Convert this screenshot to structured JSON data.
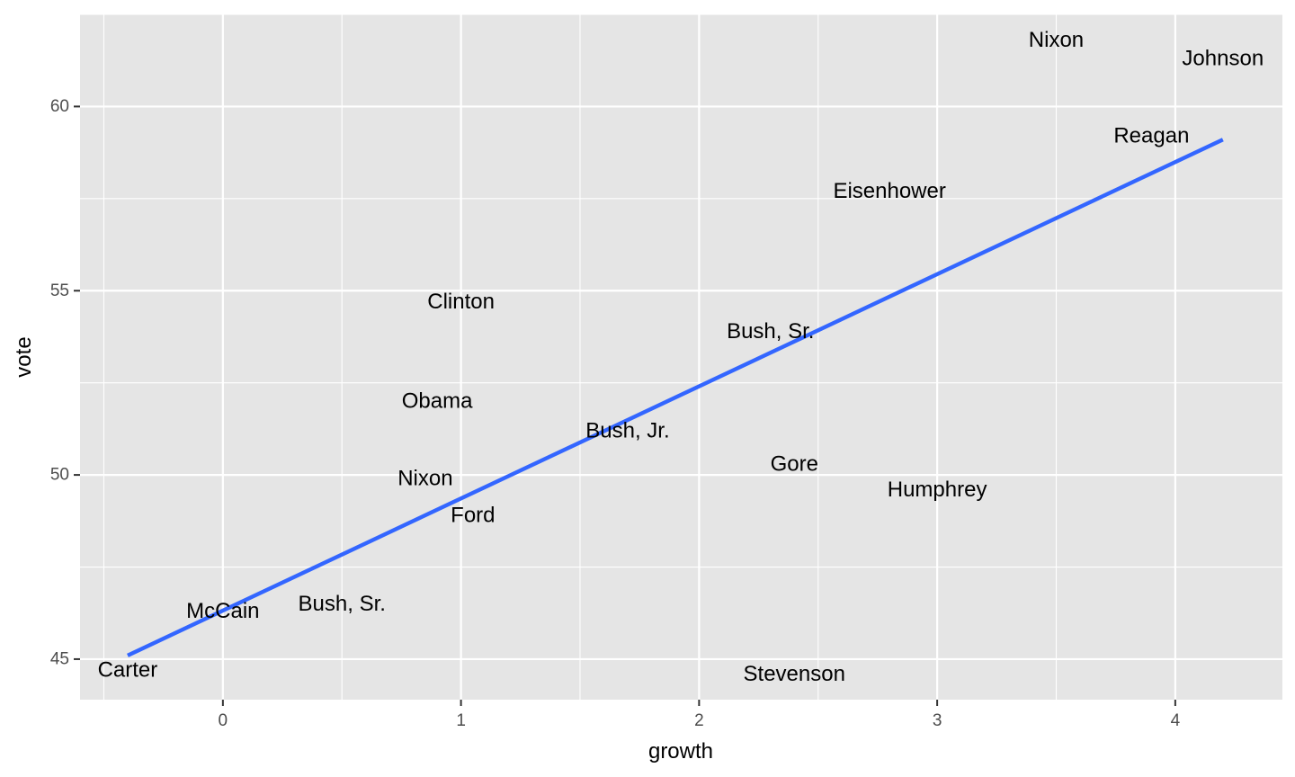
{
  "chart_data": {
    "type": "scatter",
    "title": "",
    "xlabel": "growth",
    "ylabel": "vote",
    "xlim": [
      -0.6,
      4.45
    ],
    "ylim": [
      43.9,
      62.5
    ],
    "x_ticks": [
      0,
      1,
      2,
      3,
      4
    ],
    "y_ticks": [
      45,
      50,
      55,
      60
    ],
    "x_tick_labels": [
      "0",
      "1",
      "2",
      "3",
      "4"
    ],
    "y_tick_labels": [
      "45",
      "50",
      "55",
      "60"
    ],
    "grid": true,
    "legend": "none",
    "points": [
      {
        "label": "Nixon",
        "x": 3.5,
        "y": 61.8
      },
      {
        "label": "Johnson",
        "x": 4.2,
        "y": 61.3
      },
      {
        "label": "Reagan",
        "x": 3.9,
        "y": 59.2
      },
      {
        "label": "Eisenhower",
        "x": 2.8,
        "y": 57.7
      },
      {
        "label": "Clinton",
        "x": 1.0,
        "y": 54.7
      },
      {
        "label": "Bush, Sr.",
        "x": 2.3,
        "y": 53.9
      },
      {
        "label": "Obama",
        "x": 0.9,
        "y": 52.0
      },
      {
        "label": "Bush, Jr.",
        "x": 1.7,
        "y": 51.2
      },
      {
        "label": "Gore",
        "x": 2.4,
        "y": 50.3
      },
      {
        "label": "Nixon",
        "x": 0.85,
        "y": 49.9
      },
      {
        "label": "Humphrey",
        "x": 3.0,
        "y": 49.6
      },
      {
        "label": "Ford",
        "x": 1.05,
        "y": 48.9
      },
      {
        "label": "Bush, Sr.",
        "x": 0.5,
        "y": 46.5
      },
      {
        "label": "McCain",
        "x": 0.0,
        "y": 46.3
      },
      {
        "label": "Carter",
        "x": -0.4,
        "y": 44.7
      },
      {
        "label": "Stevenson",
        "x": 2.4,
        "y": 44.6
      }
    ],
    "fit_line": {
      "x": [
        -0.4,
        4.2
      ],
      "y": [
        45.1,
        59.1
      ],
      "color": "#3366FF"
    },
    "panel_background": "#E5E5E5",
    "grid_color": "#FFFFFF"
  }
}
